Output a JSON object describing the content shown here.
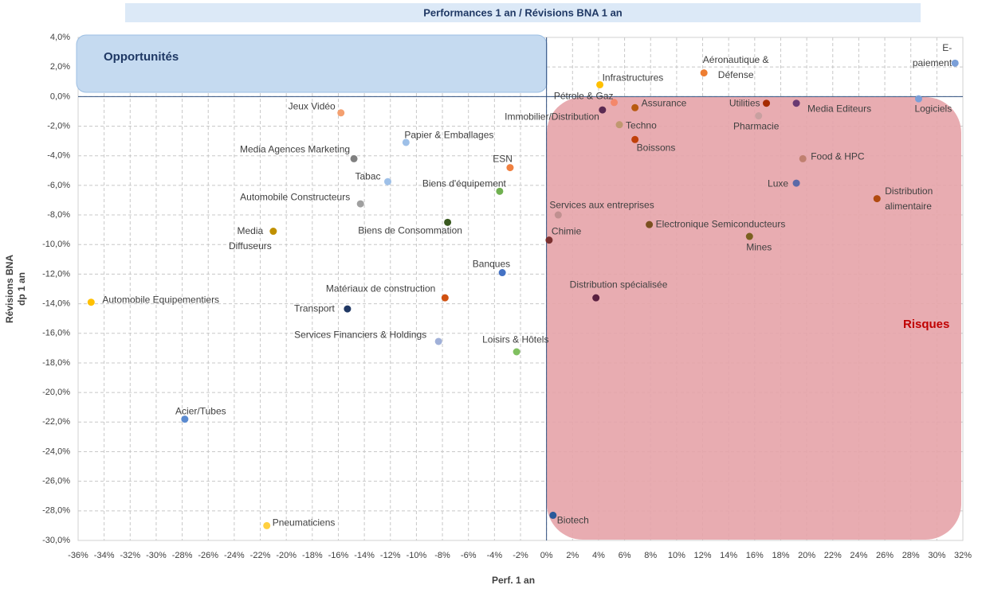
{
  "chart_data": {
    "type": "scatter",
    "title": "Performances  1 an / Révisions BNA 1 an",
    "x_label": "Perf. 1 an",
    "y_label": "Révisions BNA\ndp 1 an",
    "annotations": [
      "Opportunités",
      "Risques"
    ],
    "xlim": [
      -36,
      32
    ],
    "ylim": [
      -30,
      4
    ],
    "grid": true,
    "xticks": [
      {
        "value": -36,
        "label": "-36%"
      },
      {
        "value": -34,
        "label": "-34%"
      },
      {
        "value": -32,
        "label": "-32%"
      },
      {
        "value": -30,
        "label": "-30%"
      },
      {
        "value": -28,
        "label": "-28%"
      },
      {
        "value": -26,
        "label": "-26%"
      },
      {
        "value": -24,
        "label": "-24%"
      },
      {
        "value": -22,
        "label": "-22%"
      },
      {
        "value": -20,
        "label": "-20%"
      },
      {
        "value": -18,
        "label": "-18%"
      },
      {
        "value": -16,
        "label": "-16%"
      },
      {
        "value": -14,
        "label": "-14%"
      },
      {
        "value": -12,
        "label": "-12%"
      },
      {
        "value": -10,
        "label": "-10%"
      },
      {
        "value": -8,
        "label": "-8%"
      },
      {
        "value": -6,
        "label": "-6%"
      },
      {
        "value": -4,
        "label": "-4%"
      },
      {
        "value": -2,
        "label": "-2%"
      },
      {
        "value": 0,
        "label": "0%"
      },
      {
        "value": 2,
        "label": "2%"
      },
      {
        "value": 4,
        "label": "4%"
      },
      {
        "value": 6,
        "label": "6%"
      },
      {
        "value": 8,
        "label": "8%"
      },
      {
        "value": 10,
        "label": "10%"
      },
      {
        "value": 12,
        "label": "12%"
      },
      {
        "value": 14,
        "label": "14%"
      },
      {
        "value": 16,
        "label": "16%"
      },
      {
        "value": 18,
        "label": "18%"
      },
      {
        "value": 20,
        "label": "20%"
      },
      {
        "value": 22,
        "label": "22%"
      },
      {
        "value": 24,
        "label": "24%"
      },
      {
        "value": 26,
        "label": "26%"
      },
      {
        "value": 28,
        "label": "28%"
      },
      {
        "value": 30,
        "label": "30%"
      },
      {
        "value": 32,
        "label": "32%"
      }
    ],
    "yticks": [
      {
        "value": 4,
        "label": "4,0%"
      },
      {
        "value": 2,
        "label": "2,0%"
      },
      {
        "value": 0,
        "label": "0,0%"
      },
      {
        "value": -2,
        "label": "-2,0%"
      },
      {
        "value": -4,
        "label": "-4,0%"
      },
      {
        "value": -6,
        "label": "-6,0%"
      },
      {
        "value": -8,
        "label": "-8,0%"
      },
      {
        "value": -10,
        "label": "-10,0%"
      },
      {
        "value": -12,
        "label": "-12,0%"
      },
      {
        "value": -14,
        "label": "-14,0%"
      },
      {
        "value": -16,
        "label": "-16,0%"
      },
      {
        "value": -18,
        "label": "-18,0%"
      },
      {
        "value": -20,
        "label": "-20,0%"
      },
      {
        "value": -22,
        "label": "-22,0%"
      },
      {
        "value": -24,
        "label": "-24,0%"
      },
      {
        "value": -26,
        "label": "-26,0%"
      },
      {
        "value": -28,
        "label": "-28,0%"
      },
      {
        "value": -30,
        "label": "-30,0%"
      }
    ],
    "points": [
      {
        "name": "E-paiement",
        "x": 31.4,
        "y": 2.26,
        "color": "#7a9fd8"
      },
      {
        "name": "Aéronautique &\nDéfense",
        "x": 12.1,
        "y": 1.6,
        "color": "#ed7d31"
      },
      {
        "name": "Infrastructures",
        "x": 4.1,
        "y": 0.8,
        "color": "#ffc000"
      },
      {
        "name": "Pétrole & Gaz",
        "x": 5.2,
        "y": -0.4,
        "color": "#f4876a"
      },
      {
        "name": "Immobilier/Distribution",
        "x": 4.3,
        "y": -0.9,
        "color": "#5a2a52"
      },
      {
        "name": "Assurance",
        "x": 6.8,
        "y": -0.75,
        "color": "#b85a10"
      },
      {
        "name": "Utilities",
        "x": 16.9,
        "y": -0.45,
        "color": "#a52a00"
      },
      {
        "name": "Media Editeurs",
        "x": 19.2,
        "y": -0.45,
        "color": "#6a3a72"
      },
      {
        "name": "Logiciels",
        "x": 28.6,
        "y": -0.15,
        "color": "#7a9fd8"
      },
      {
        "name": "Pharmacie",
        "x": 16.3,
        "y": -1.3,
        "color": "#c8a0a0"
      },
      {
        "name": "Techno",
        "x": 5.6,
        "y": -1.9,
        "color": "#c09870"
      },
      {
        "name": "Boissons",
        "x": 6.8,
        "y": -2.9,
        "color": "#c0400a"
      },
      {
        "name": "Food & HPC",
        "x": 19.7,
        "y": -4.2,
        "color": "#c08070"
      },
      {
        "name": "Luxe",
        "x": 19.2,
        "y": -5.85,
        "color": "#5a6aa8"
      },
      {
        "name": "Distribution\nalimentaire",
        "x": 25.4,
        "y": -6.9,
        "color": "#b04a10"
      },
      {
        "name": "Services aux entreprises",
        "x": 0.9,
        "y": -8.0,
        "color": "#c09090"
      },
      {
        "name": "Electronique Semiconducteurs",
        "x": 7.9,
        "y": -8.65,
        "color": "#7a5020"
      },
      {
        "name": "Mines",
        "x": 15.6,
        "y": -9.45,
        "color": "#7a6020"
      },
      {
        "name": "Chimie",
        "x": 0.2,
        "y": -9.7,
        "color": "#7a3030"
      },
      {
        "name": "Distribution spécialisée",
        "x": 3.8,
        "y": -13.6,
        "color": "#5a2040"
      },
      {
        "name": "Biotech",
        "x": 0.5,
        "y": -28.3,
        "color": "#2a5a9a"
      },
      {
        "name": "Jeux Vidéo",
        "x": -15.8,
        "y": -1.1,
        "color": "#f4a070"
      },
      {
        "name": "Papier & Emballages",
        "x": -10.8,
        "y": -3.1,
        "color": "#9ec0e8"
      },
      {
        "name": "Media Agences Marketing",
        "x": -14.8,
        "y": -4.2,
        "color": "#808080"
      },
      {
        "name": "ESN",
        "x": -2.8,
        "y": -4.8,
        "color": "#f08040"
      },
      {
        "name": "Tabac",
        "x": -12.2,
        "y": -5.75,
        "color": "#9ec0e8"
      },
      {
        "name": "Biens d'équipement",
        "x": -3.6,
        "y": -6.4,
        "color": "#70b050"
      },
      {
        "name": "Automobile Constructeurs",
        "x": -14.3,
        "y": -7.25,
        "color": "#a0a0a0"
      },
      {
        "name": "Biens de Consommation",
        "x": -7.6,
        "y": -8.5,
        "color": "#3a5a20"
      },
      {
        "name": "Media\nDiffuseurs",
        "x": -21.0,
        "y": -9.1,
        "color": "#c09000"
      },
      {
        "name": "Banques",
        "x": -3.4,
        "y": -11.9,
        "color": "#4472c4"
      },
      {
        "name": "Matériaux de construction",
        "x": -7.8,
        "y": -13.6,
        "color": "#d05010"
      },
      {
        "name": "Automobile Equipementiers",
        "x": -35.0,
        "y": -13.9,
        "color": "#ffc000"
      },
      {
        "name": "Transport",
        "x": -15.3,
        "y": -14.35,
        "color": "#203864"
      },
      {
        "name": "Services Financiers & Holdings",
        "x": -8.3,
        "y": -16.55,
        "color": "#a0b0d8"
      },
      {
        "name": "Loisirs & Hôtels",
        "x": -2.3,
        "y": -17.25,
        "color": "#80c060"
      },
      {
        "name": "Acier/Tubes",
        "x": -27.8,
        "y": -21.8,
        "color": "#5a8ad0"
      },
      {
        "name": "Pneumaticiens",
        "x": -21.5,
        "y": -29.0,
        "color": "#ffd040"
      }
    ]
  }
}
